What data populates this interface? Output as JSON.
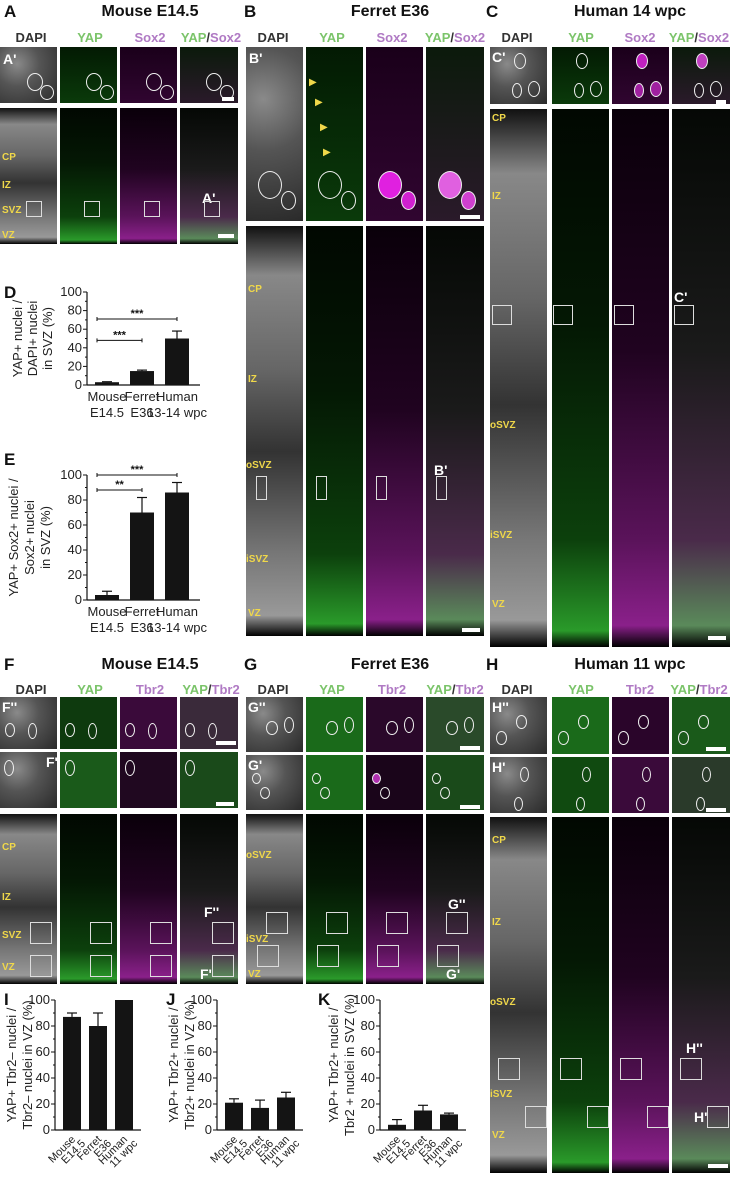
{
  "panels": {
    "A": {
      "letter": "A",
      "title": "Mouse E14.5",
      "channels": [
        "DAPI",
        "YAP",
        "Sox2",
        "YAP",
        "/",
        "Sox2"
      ],
      "inset": "A'",
      "zones": [
        "CP",
        "IZ",
        "SVZ",
        "VZ"
      ]
    },
    "B": {
      "letter": "B",
      "title": "Ferret E36",
      "channels": [
        "DAPI",
        "YAP",
        "Sox2",
        "YAP",
        "/",
        "Sox2"
      ],
      "inset": "B'",
      "zones": [
        "CP",
        "IZ",
        "oSVZ",
        "iSVZ",
        "VZ"
      ]
    },
    "C": {
      "letter": "C",
      "title": "Human 14 wpc",
      "channels": [
        "DAPI",
        "YAP",
        "Sox2",
        "YAP",
        "/",
        "Sox2"
      ],
      "inset": "C'",
      "zones": [
        "CP",
        "IZ",
        "oSVZ",
        "iSVZ",
        "VZ"
      ]
    },
    "F": {
      "letter": "F",
      "title": "Mouse E14.5",
      "channels": [
        "DAPI",
        "YAP",
        "Tbr2",
        "YAP",
        "/",
        "Tbr2"
      ],
      "inset1": "F''",
      "inset2": "F'",
      "zones": [
        "CP",
        "IZ",
        "SVZ",
        "VZ"
      ]
    },
    "G": {
      "letter": "G",
      "title": "Ferret E36",
      "channels": [
        "DAPI",
        "YAP",
        "Tbr2",
        "YAP",
        "/",
        "Tbr2"
      ],
      "inset1": "G''",
      "inset2": "G'",
      "zones": [
        "oSVZ",
        "iSVZ",
        "VZ"
      ]
    },
    "H": {
      "letter": "H",
      "title": "Human 11 wpc",
      "channels": [
        "DAPI",
        "YAP",
        "Tbr2",
        "YAP",
        "/",
        "Tbr2"
      ],
      "inset1": "H''",
      "inset2": "H'",
      "zones": [
        "CP",
        "IZ",
        "oSVZ",
        "iSVZ",
        "VZ"
      ]
    },
    "D": {
      "letter": "D"
    },
    "E": {
      "letter": "E"
    },
    "I": {
      "letter": "I"
    },
    "J": {
      "letter": "J"
    },
    "K": {
      "letter": "K"
    }
  },
  "chart_data": [
    {
      "id": "D",
      "type": "bar",
      "categories": [
        "Mouse E14.5",
        "Ferret E36",
        "Human 13-14 wpc"
      ],
      "category_lines": [
        [
          "Mouse",
          "E14.5"
        ],
        [
          "Ferret",
          "E36"
        ],
        [
          "Human",
          "13-14 wpc"
        ]
      ],
      "values": [
        3,
        15,
        50
      ],
      "errors": [
        0.5,
        1,
        8
      ],
      "ylabel_lines": [
        "YAP+ nuclei /",
        "DAPI+ nuclei",
        "in SVZ (%)"
      ],
      "ylim": [
        0,
        100
      ],
      "yticks": [
        0,
        20,
        40,
        60,
        80,
        100
      ],
      "significance": [
        {
          "from": 0,
          "to": 1,
          "label": "***"
        },
        {
          "from": 0,
          "to": 2,
          "label": "***"
        }
      ]
    },
    {
      "id": "E",
      "type": "bar",
      "categories": [
        "Mouse E14.5",
        "Ferret E36",
        "Human 13-14 wpc"
      ],
      "category_lines": [
        [
          "Mouse",
          "E14.5"
        ],
        [
          "Ferret",
          "E36"
        ],
        [
          "Human",
          "13-14 wpc"
        ]
      ],
      "values": [
        4,
        70,
        86
      ],
      "errors": [
        3,
        12,
        8
      ],
      "ylabel_lines": [
        "YAP+ Sox2+ nuclei /",
        "Sox2+ nuclei",
        "in SVZ (%)"
      ],
      "ylim": [
        0,
        100
      ],
      "yticks": [
        0,
        20,
        40,
        60,
        80,
        100
      ],
      "significance": [
        {
          "from": 0,
          "to": 1,
          "label": "**"
        },
        {
          "from": 0,
          "to": 2,
          "label": "***"
        }
      ]
    },
    {
      "id": "I",
      "type": "bar",
      "categories": [
        "Mouse E14.5",
        "Ferret E36",
        "Human 11 wpc"
      ],
      "category_lines": [
        [
          "Mouse",
          "E14.5"
        ],
        [
          "Ferret",
          "E36"
        ],
        [
          "Human",
          "11 wpc"
        ]
      ],
      "values": [
        87,
        80,
        100
      ],
      "errors": [
        3,
        10,
        0
      ],
      "ylabel_lines": [
        "YAP+ Tbr2– nuclei /",
        "Tbr2– nuclei in VZ (%)"
      ],
      "ylim": [
        0,
        100
      ],
      "yticks": [
        0,
        20,
        40,
        60,
        80,
        100
      ]
    },
    {
      "id": "J",
      "type": "bar",
      "categories": [
        "Mouse E14.5",
        "Ferret E36",
        "Human 11 wpc"
      ],
      "category_lines": [
        [
          "Mouse",
          "E14.5"
        ],
        [
          "Ferret",
          "E36"
        ],
        [
          "Human",
          "11 wpc"
        ]
      ],
      "values": [
        21,
        17,
        25
      ],
      "errors": [
        3,
        6,
        4
      ],
      "ylabel_lines": [
        "YAP+ Tbr2+ nuclei /",
        "Tbr2+ nuclei in VZ (%)"
      ],
      "ylim": [
        0,
        100
      ],
      "yticks": [
        0,
        20,
        40,
        60,
        80,
        100
      ]
    },
    {
      "id": "K",
      "type": "bar",
      "categories": [
        "Mouse E14.5",
        "Ferret E36",
        "Human 11 wpc"
      ],
      "category_lines": [
        [
          "Mouse",
          "E14.5"
        ],
        [
          "Ferret",
          "E36"
        ],
        [
          "Human",
          "11 wpc"
        ]
      ],
      "values": [
        4,
        15,
        12
      ],
      "errors": [
        4,
        4,
        1
      ],
      "ylabel_lines": [
        "YAP+ Tbr2+ nuclei /",
        "Tbr2 + nuclei in SVZ (%)"
      ],
      "ylim": [
        0,
        100
      ],
      "yticks": [
        0,
        20,
        40,
        60,
        80,
        100
      ]
    }
  ]
}
